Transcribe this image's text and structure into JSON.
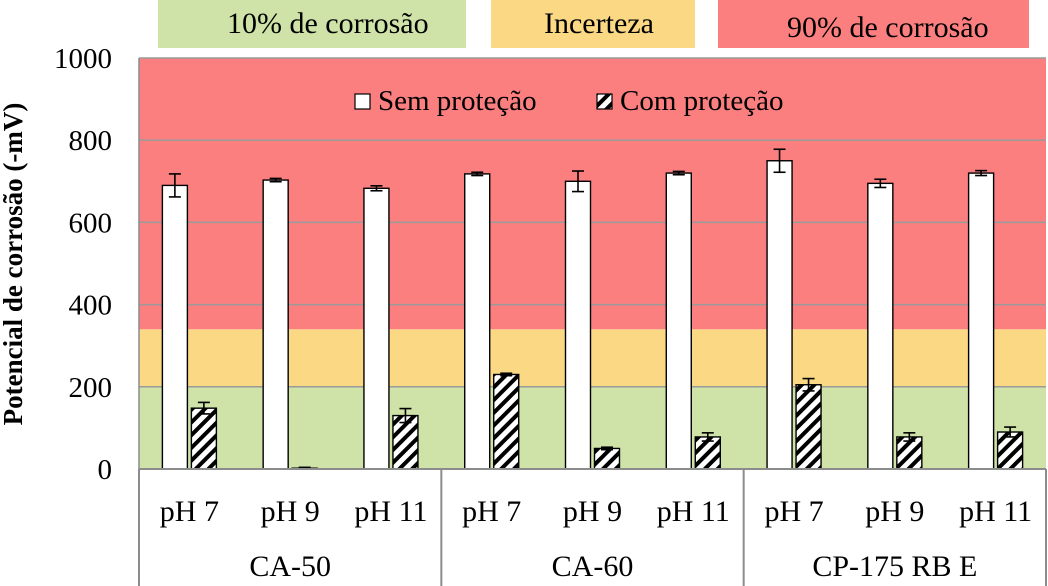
{
  "chart_data": {
    "type": "bar",
    "ylabel": "Potencial de corrosão (-mV)",
    "ylim": [
      0,
      1000
    ],
    "yticks": [
      "0",
      "200",
      "400",
      "600",
      "800",
      "1000"
    ],
    "grid": true,
    "legend_position": "top-center",
    "regions": [
      {
        "label": "10% de corrosão",
        "from": 0,
        "to": 200,
        "color": "#cfe3a8"
      },
      {
        "label": "Incerteza",
        "from": 200,
        "to": 340,
        "color": "#fbd884"
      },
      {
        "label": "90% de corrosão",
        "from": 340,
        "to": 1000,
        "color": "#fb7f7f"
      }
    ],
    "groups": [
      {
        "name": "CA-50",
        "categories": [
          "pH 7",
          "pH 9",
          "pH 11"
        ]
      },
      {
        "name": "CA-60",
        "categories": [
          "pH 7",
          "pH 9",
          "pH 11"
        ]
      },
      {
        "name": "CP-175 RB E",
        "categories": [
          "pH 7",
          "pH 9",
          "pH 11"
        ]
      }
    ],
    "series": [
      {
        "name": "Sem proteção",
        "pattern": "white",
        "values": [
          690,
          703,
          683,
          718,
          700,
          720,
          750,
          695,
          720
        ],
        "errors": [
          28,
          4,
          6,
          4,
          25,
          4,
          28,
          10,
          6
        ]
      },
      {
        "name": "Com proteção",
        "pattern": "hatched",
        "values": [
          148,
          2,
          130,
          230,
          50,
          78,
          205,
          78,
          90
        ],
        "errors": [
          14,
          2,
          17,
          3,
          3,
          10,
          15,
          10,
          12
        ]
      }
    ]
  }
}
